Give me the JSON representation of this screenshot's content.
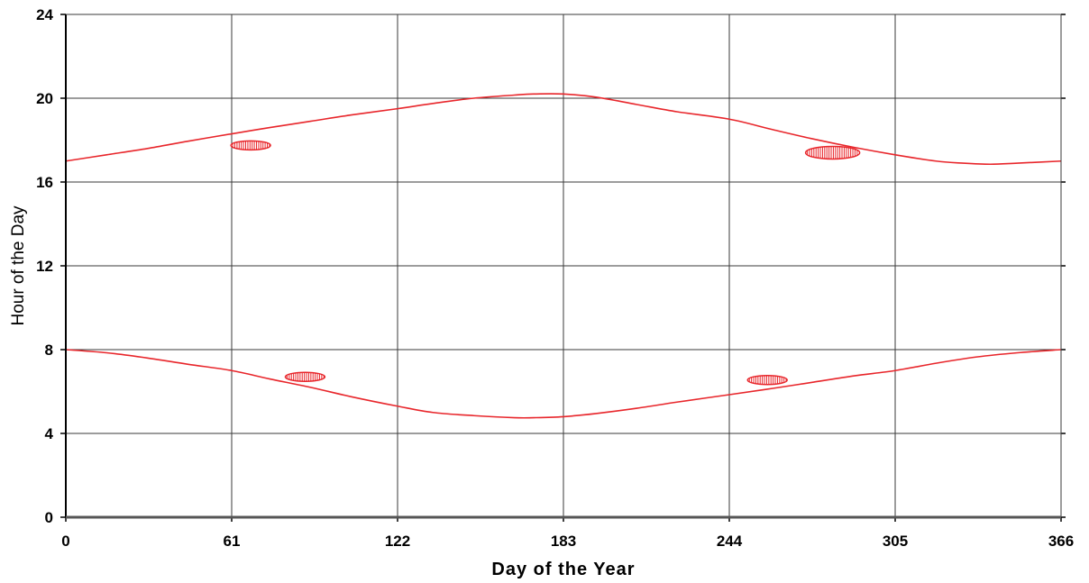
{
  "chart_data": {
    "type": "line",
    "xlabel": "Day of the Year",
    "ylabel": "Hour of the Day",
    "xlim": [
      0,
      366
    ],
    "ylim": [
      0,
      24
    ],
    "x_ticks": [
      0,
      61,
      122,
      183,
      244,
      305,
      366
    ],
    "y_ticks": [
      0,
      4,
      8,
      12,
      16,
      20,
      24
    ],
    "grid": true,
    "colors": {
      "series": "#e8262b",
      "grid": "#3a3a3a",
      "axis": "#000000"
    },
    "series": [
      {
        "x": [
          0,
          15,
          30,
          45,
          61,
          75,
          90,
          105,
          122,
          135,
          150,
          165,
          172,
          183,
          195,
          210,
          225,
          244,
          260,
          275,
          290,
          305,
          320,
          330,
          340,
          350,
          366
        ],
        "y": [
          17.0,
          17.3,
          17.6,
          17.95,
          18.3,
          18.6,
          18.9,
          19.2,
          19.5,
          19.75,
          20.0,
          20.15,
          20.2,
          20.2,
          20.05,
          19.7,
          19.35,
          19.0,
          18.5,
          18.05,
          17.65,
          17.3,
          17.0,
          16.9,
          16.85,
          16.9,
          17.0
        ]
      },
      {
        "x": [
          0,
          15,
          30,
          45,
          61,
          75,
          90,
          105,
          122,
          135,
          150,
          165,
          172,
          183,
          195,
          210,
          225,
          244,
          260,
          275,
          290,
          305,
          320,
          335,
          350,
          366
        ],
        "y": [
          8.0,
          7.85,
          7.6,
          7.3,
          7.0,
          6.6,
          6.2,
          5.75,
          5.3,
          5.0,
          4.85,
          4.75,
          4.75,
          4.8,
          4.95,
          5.2,
          5.5,
          5.85,
          6.15,
          6.45,
          6.75,
          7.0,
          7.35,
          7.65,
          7.85,
          8.0
        ]
      }
    ],
    "markers": [
      {
        "x": 68,
        "y": 17.75
      },
      {
        "x": 282,
        "y": 17.4
      },
      {
        "x": 88,
        "y": 6.7
      },
      {
        "x": 258,
        "y": 6.55
      }
    ]
  }
}
